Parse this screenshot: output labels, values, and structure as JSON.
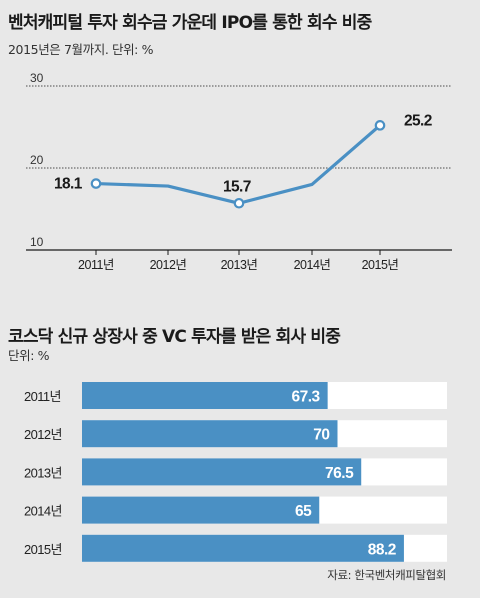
{
  "charts": [
    {
      "title": "벤처캐피털 투자 회수금 가운데 IPO를 통한 회수 비중",
      "subtitle": "2015년은 7월까지. 단위: %",
      "chart_data": {
        "type": "line",
        "title": "벤처캐피털 투자 회수금 가운데 IPO를 통한 회수 비중",
        "subtitle": "2015년은 7월까지. 단위: %",
        "x": [
          "2011년",
          "2012년",
          "2013년",
          "2014년",
          "2015년"
        ],
        "series": [
          {
            "values": [
              18.1,
              17.8,
              15.7,
              18.0,
              25.2
            ]
          }
        ],
        "data_labels": [
          "18.1",
          "",
          "15.7",
          "",
          "25.2"
        ],
        "yticks": [
          "30",
          "20",
          "10"
        ],
        "ylim": [
          10,
          30
        ],
        "grid": true,
        "color": "#4a90c4"
      }
    },
    {
      "title": "코스닥 신규 상장사 중 VC 투자를 받은 회사 비중",
      "subtitle": "단위: %",
      "chart_data": {
        "type": "bar",
        "orientation": "horizontal",
        "title": "코스닥 신규 상장사 중 VC 투자를 받은 회사 비중",
        "subtitle": "단위: %",
        "categories": [
          "2011년",
          "2012년",
          "2013년",
          "2014년",
          "2015년"
        ],
        "values": [
          67.3,
          70,
          76.5,
          65,
          88.2
        ],
        "value_labels": [
          "67.3",
          "70",
          "76.5",
          "65",
          "88.2"
        ],
        "xlim": [
          0,
          100
        ],
        "bar_color": "#4a90c4",
        "track_color": "#ffffff"
      }
    }
  ],
  "source": "자료: 한국벤처캐피탈협회"
}
